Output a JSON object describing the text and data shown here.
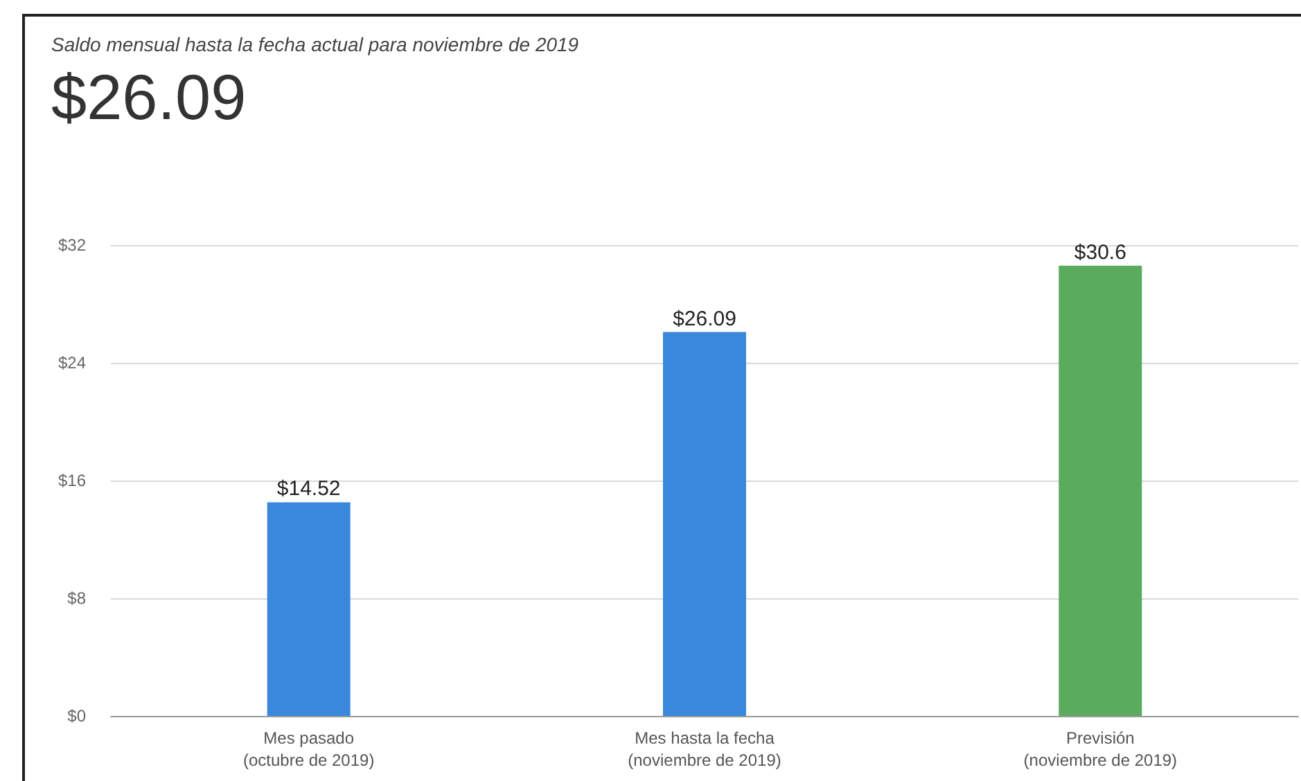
{
  "chart_data": {
    "type": "bar",
    "title": "Saldo mensual hasta la fecha actual para noviembre de 2019",
    "subtitle": "$26.09",
    "categories": [
      "Mes pasado\n(octubre de 2019)",
      "Mes hasta la fecha\n(noviembre de 2019)",
      "Previsión\n(noviembre de 2019)"
    ],
    "values": [
      14.52,
      26.09,
      30.6
    ],
    "colors": [
      "#3a88dc",
      "#3a88dc",
      "#5aab5e"
    ],
    "value_labels": [
      "$14.52",
      "$26.09",
      "$30.6"
    ],
    "ylim": [
      0,
      32
    ],
    "yticks": [
      {
        "value": 0,
        "label": "$0"
      },
      {
        "value": 8,
        "label": "$8"
      },
      {
        "value": 16,
        "label": "$16"
      },
      {
        "value": 24,
        "label": "$24"
      },
      {
        "value": 32,
        "label": "$32"
      }
    ],
    "grid": "y"
  }
}
